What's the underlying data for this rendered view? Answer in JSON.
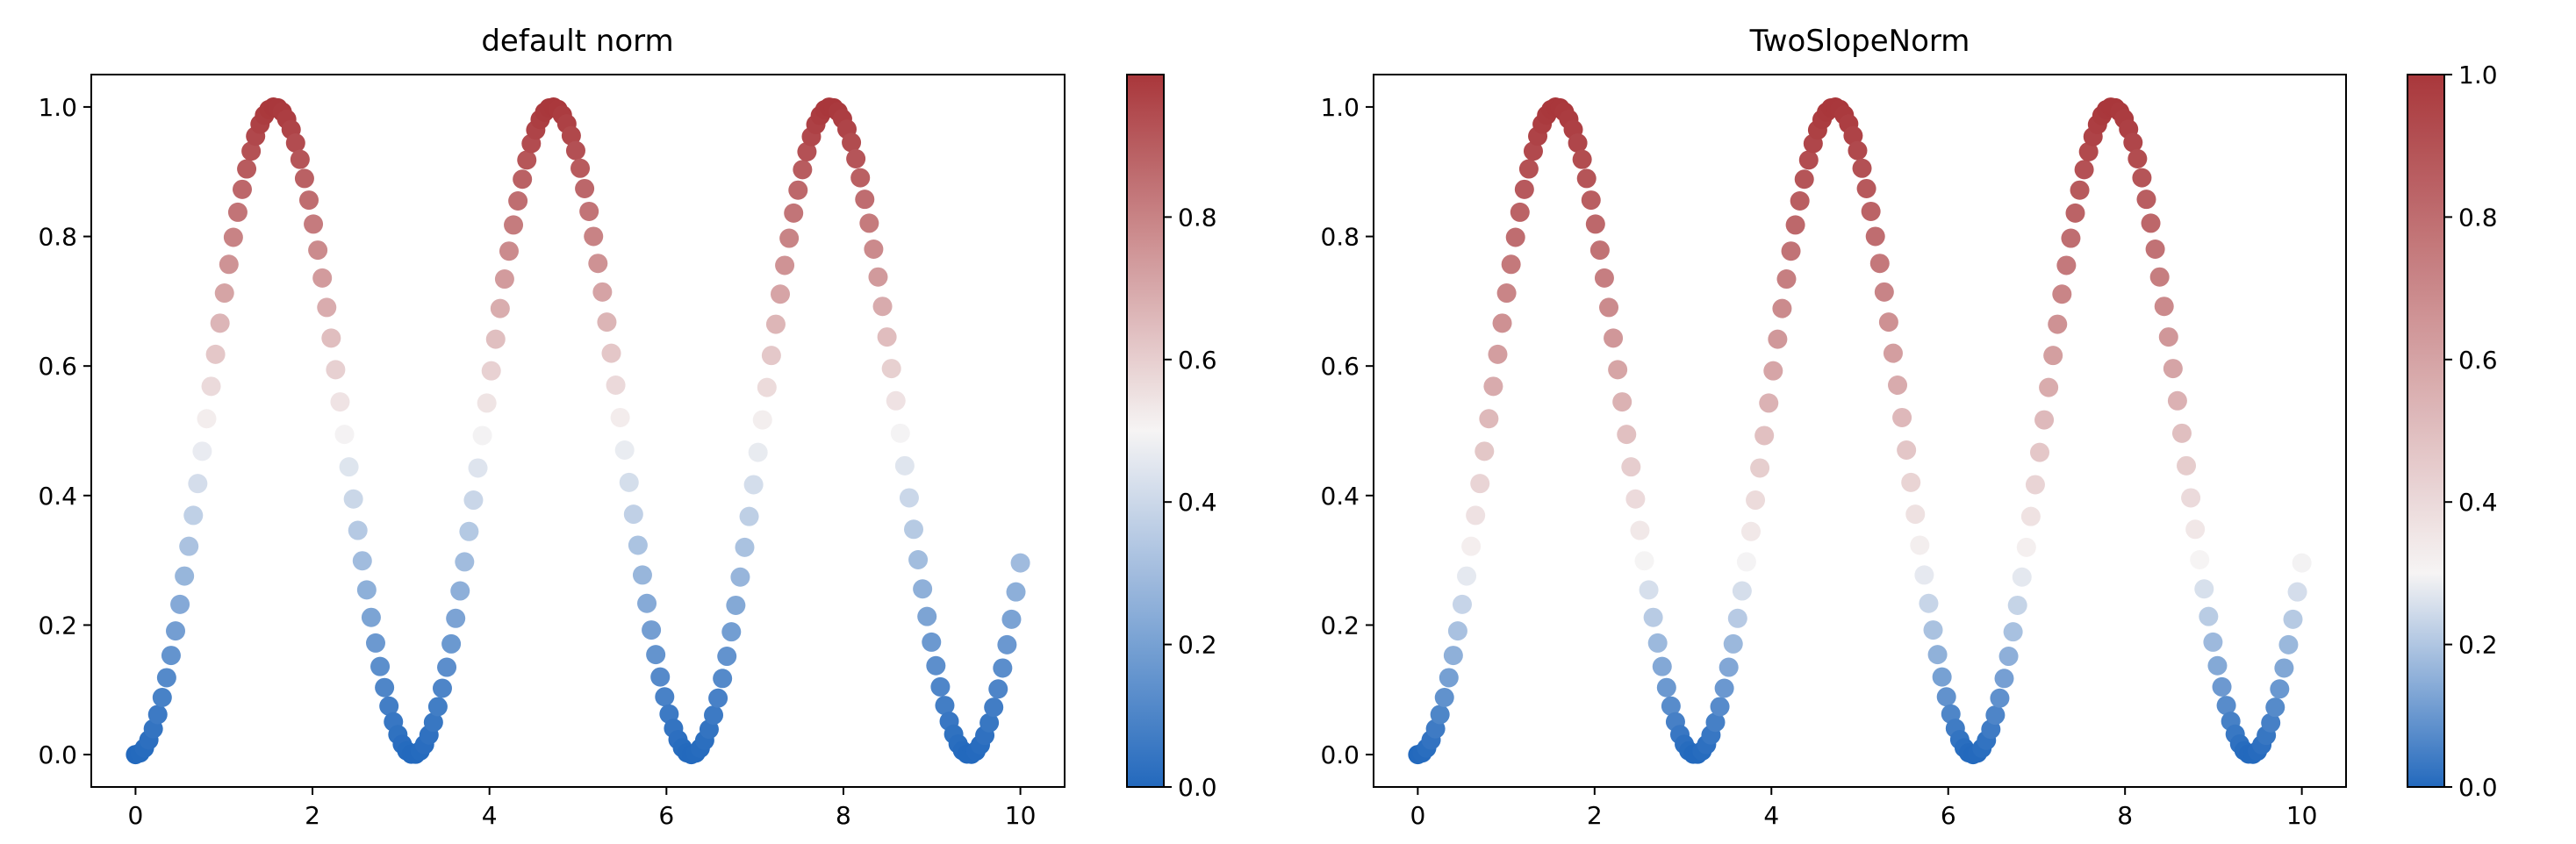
{
  "chart_data": [
    {
      "type": "scatter",
      "title": "default norm",
      "x_formula": "x = 0 … 10 in 200 evenly spaced steps",
      "y_formula": "y = sin(x)^2",
      "x": {
        "start": 0,
        "stop": 10,
        "count": 200
      },
      "xlim": [
        -0.5,
        10.5
      ],
      "ylim": [
        -0.05,
        1.05
      ],
      "xticks": [
        "0",
        "2",
        "4",
        "6",
        "8",
        "10"
      ],
      "yticks": [
        "0.0",
        "0.2",
        "0.4",
        "0.6",
        "0.8",
        "1.0"
      ],
      "colormap": "vlag",
      "color_values": "y",
      "norm": {
        "type": "linear",
        "vmin": 0.0,
        "vmax": 1.0
      },
      "colorbar": {
        "range": [
          0.0,
          1.0
        ],
        "ticks": [
          "0.0",
          "0.2",
          "0.4",
          "0.6",
          "0.8"
        ],
        "tick_values": [
          0.0,
          0.2,
          0.4,
          0.6,
          0.8
        ]
      },
      "grid": false
    },
    {
      "type": "scatter",
      "title": "TwoSlopeNorm",
      "x_formula": "x = 0 … 10 in 200 evenly spaced steps",
      "y_formula": "y = sin(x)^2",
      "x": {
        "start": 0,
        "stop": 10,
        "count": 200
      },
      "xlim": [
        -0.5,
        10.5
      ],
      "ylim": [
        -0.05,
        1.05
      ],
      "xticks": [
        "0",
        "2",
        "4",
        "6",
        "8",
        "10"
      ],
      "yticks": [
        "0.0",
        "0.2",
        "0.4",
        "0.6",
        "0.8",
        "1.0"
      ],
      "colormap": "vlag",
      "color_values": "y",
      "norm": {
        "type": "two-slope",
        "vmin": 0.0,
        "vcenter": 0.3,
        "vmax": 1.0
      },
      "colorbar": {
        "range": [
          0.0,
          1.0
        ],
        "ticks": [
          "0.0",
          "0.2",
          "0.4",
          "0.6",
          "0.8",
          "1.0"
        ],
        "tick_values": [
          0.0,
          0.2,
          0.4,
          0.6,
          0.8,
          1.0
        ]
      },
      "grid": false
    }
  ],
  "colors": {
    "cmap_low": "#2369bd",
    "cmap_mid": "#f6f4f4",
    "cmap_high": "#a9373b",
    "axes": "#000000",
    "background": "#ffffff"
  }
}
